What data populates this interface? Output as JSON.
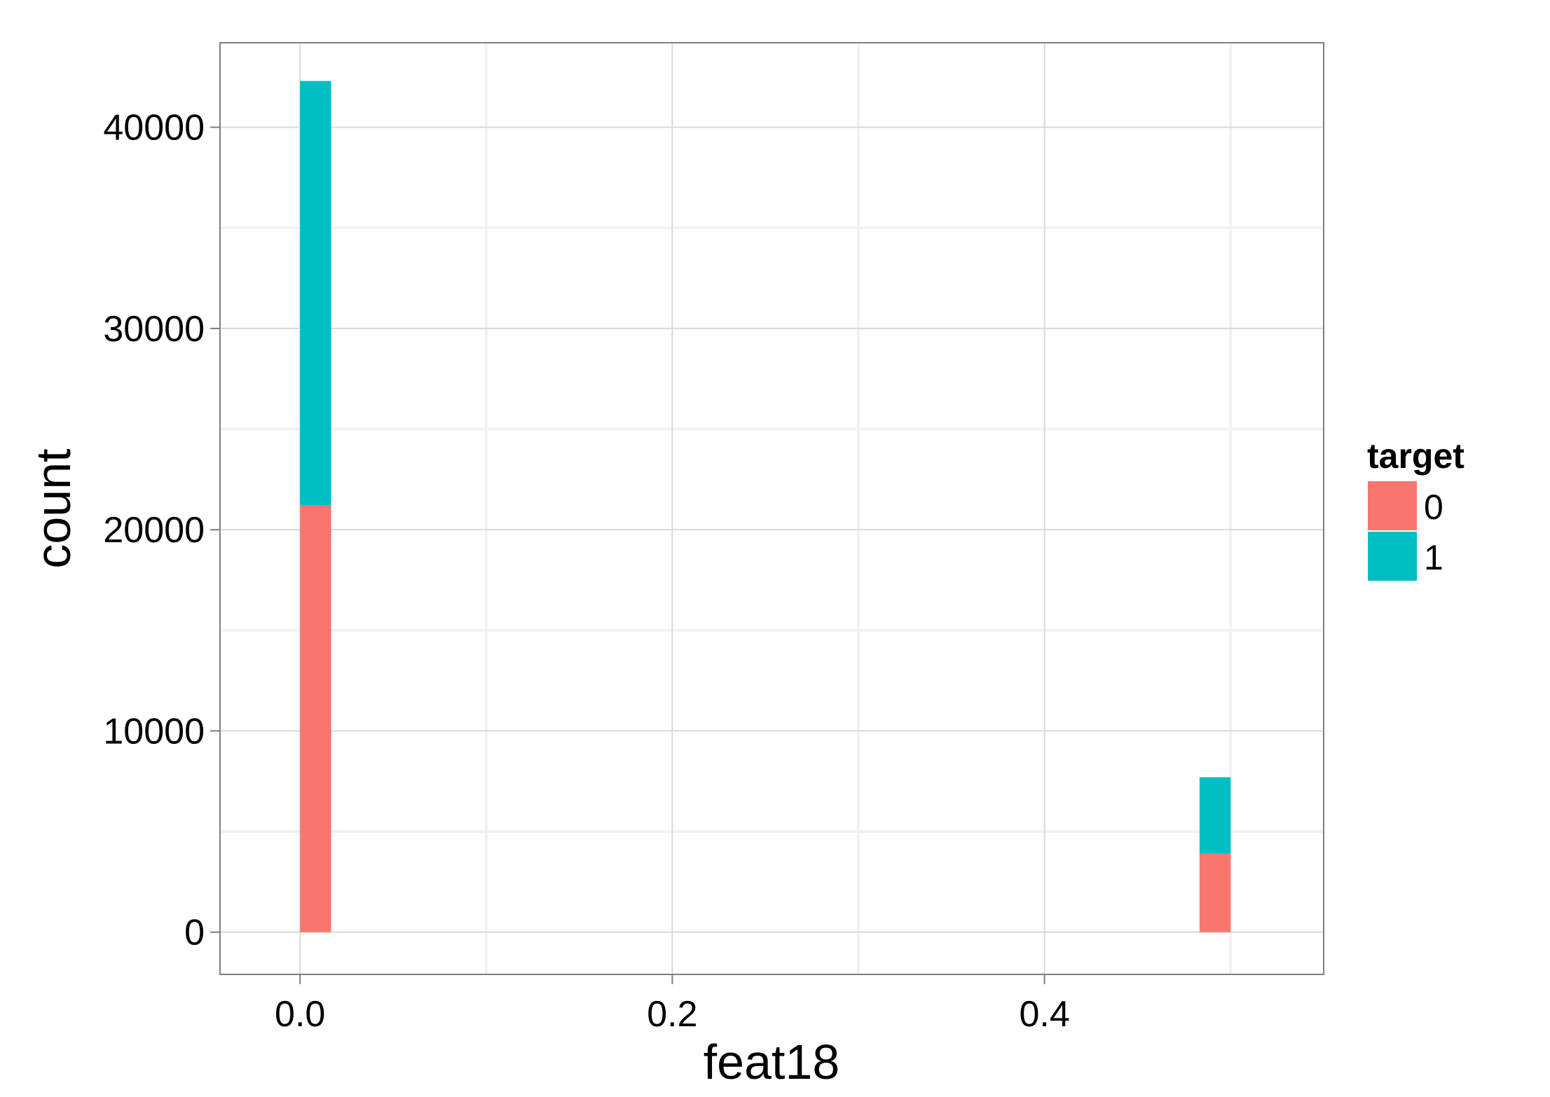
{
  "chart_data": {
    "type": "bar",
    "stacked": true,
    "xlabel": "feat18",
    "ylabel": "count",
    "x_ticks": [
      "0.0",
      "0.2",
      "0.4"
    ],
    "y_ticks": [
      "0",
      "10000",
      "20000",
      "30000",
      "40000"
    ],
    "xlim": [
      -0.043,
      0.55
    ],
    "ylim": [
      -2100,
      44200
    ],
    "grid": true,
    "legend_position": "right",
    "legend": {
      "title": "target",
      "entries": [
        {
          "label": "0",
          "color": "#F8766D"
        },
        {
          "label": "1",
          "color": "#00BFC4"
        }
      ]
    },
    "bins": [
      {
        "x0": 0.0,
        "x1": 0.0167,
        "counts": {
          "0": 21200,
          "1": 21100
        }
      },
      {
        "x0": 0.4833,
        "x1": 0.5,
        "counts": {
          "0": 3900,
          "1": 3800
        }
      }
    ]
  }
}
